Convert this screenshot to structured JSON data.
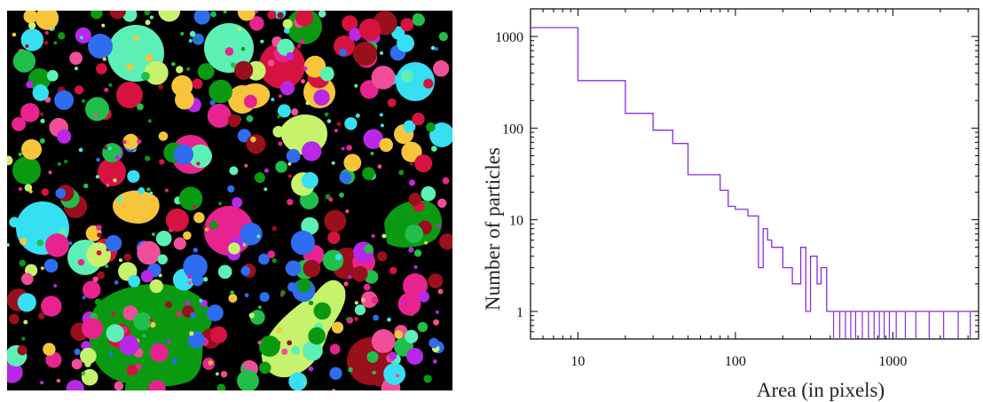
{
  "image_panel": {
    "background": "#000000",
    "palette": [
      "#0a9a12",
      "#d6123f",
      "#5df0b6",
      "#36e0f2",
      "#f7c53b",
      "#c7f26b",
      "#e8238f",
      "#990f1b",
      "#b927e8",
      "#2e6cf0",
      "#1fbf4a",
      "#f04e98"
    ]
  },
  "chart_data": {
    "type": "line",
    "style": "step",
    "xlabel": "Area (in pixels)",
    "ylabel": "Number of particles",
    "x_scale": "log",
    "y_scale": "log",
    "xlim": [
      5,
      3500
    ],
    "ylim": [
      0.5,
      2000
    ],
    "x_ticks": [
      10,
      100,
      1000
    ],
    "x_tick_labels": [
      "10",
      "100",
      "1000"
    ],
    "y_ticks": [
      1,
      10,
      100,
      1000
    ],
    "y_tick_labels": [
      "1",
      "10",
      "100",
      "1000"
    ],
    "grid": false,
    "series": [
      {
        "color": "#8a2be2",
        "x": [
          5,
          10,
          20,
          30,
          40,
          50,
          80,
          90,
          100,
          120,
          140,
          150,
          160,
          170,
          180,
          200,
          230,
          260,
          280,
          300,
          330,
          350,
          380,
          420,
          480,
          550,
          620,
          700,
          800,
          900,
          1000,
          1500,
          2000,
          2500,
          3000
        ],
        "y": [
          1250,
          330,
          145,
          95,
          68,
          31,
          21,
          14,
          13,
          11,
          3,
          8,
          6,
          5,
          5,
          3,
          2,
          5,
          1,
          4,
          2,
          3,
          1,
          1,
          1,
          1,
          1,
          1,
          1,
          1,
          1,
          1,
          1,
          1,
          1
        ]
      }
    ]
  }
}
